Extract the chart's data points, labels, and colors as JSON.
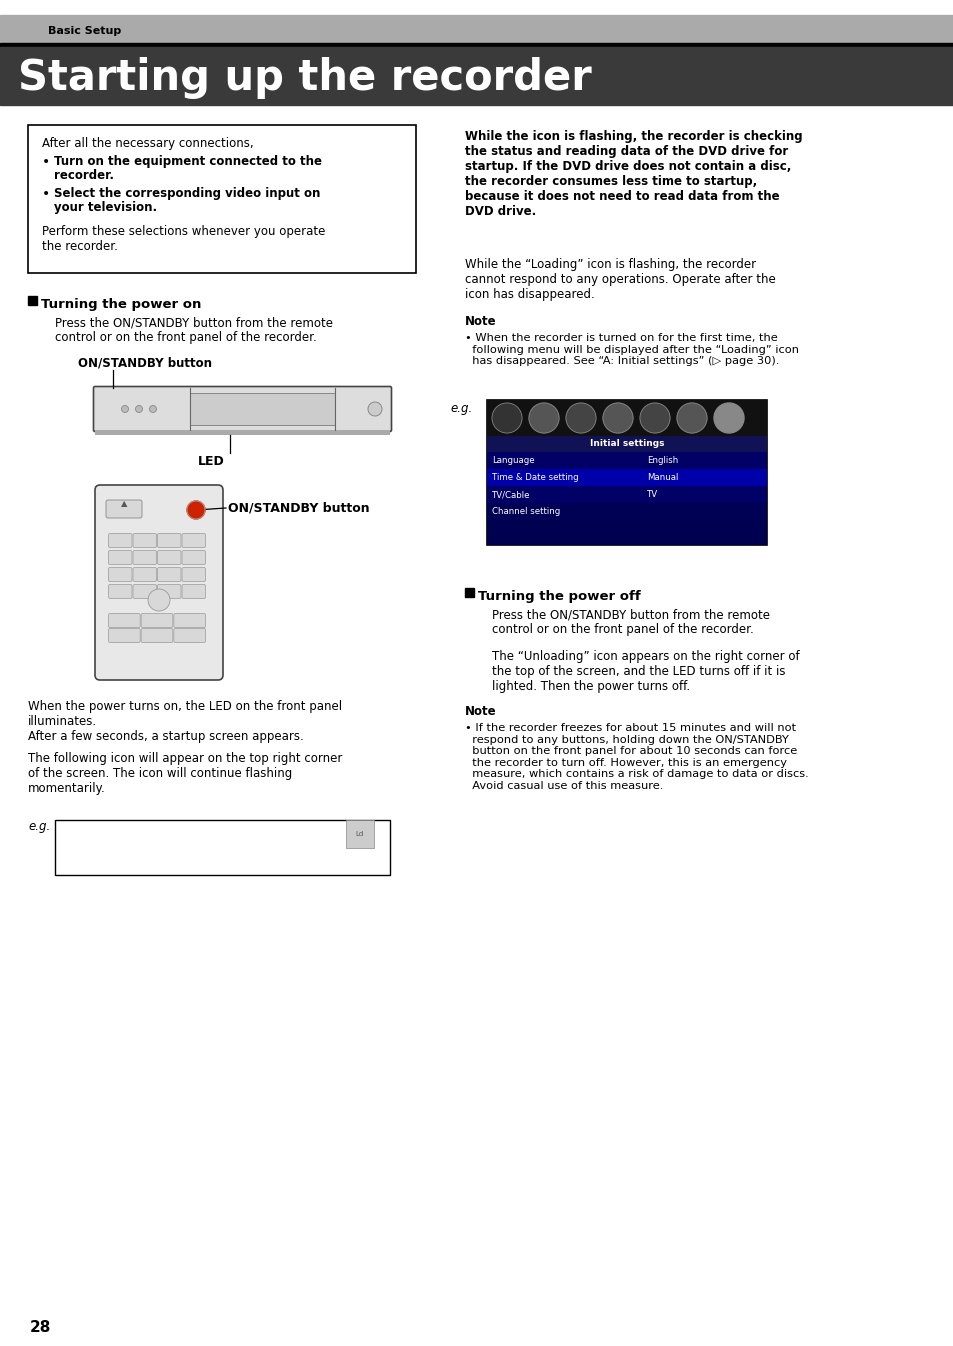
{
  "page_bg": "#ffffff",
  "header_bg": "#aaaaaa",
  "title_bg": "#3a3a3a",
  "header_text": "Basic Setup",
  "title_text": "Starting up the recorder",
  "page_number": "28",
  "box_text_intro": "After all the necessary connections,",
  "box_bullet1_bold": "Turn on the equipment connected to the\nrecorder.",
  "box_bullet2_bold": "Select the corresponding video input on\nyour television.",
  "box_footer": "Perform these selections whenever you operate\nthe recorder.",
  "section_turning_on": "Turning the power on",
  "section_turning_on_desc": "Press the ON/STANDBY button from the remote\ncontrol or on the front panel of the recorder.",
  "label_on_standby": "ON/STANDBY button",
  "label_led": "LED",
  "label_on_standby2": "ON/STANDBY button",
  "para_power_on1": "When the power turns on, the LED on the front panel\nilluminates.\nAfter a few seconds, a startup screen appears.",
  "para_power_on2": "The following icon will appear on the top right corner\nof the screen. The icon will continue flashing\nmomentarily.",
  "right_bold_text": "While the icon is flashing, the recorder is checking\nthe status and reading data of the DVD drive for\nstartup. If the DVD drive does not contain a disc,\nthe recorder consumes less time to startup,\nbecause it does not need to read data from the\nDVD drive.",
  "right_normal_text": "While the “Loading” icon is flashing, the recorder\ncannot respond to any operations. Operate after the\nicon has disappeared.",
  "note_label": "Note",
  "note_text": "• When the recorder is turned on for the first time, the\n  following menu will be displayed after the “Loading” icon\n  has disappeared. See “A: Initial settings” (▷ page 30).",
  "section_turning_off": "Turning the power off",
  "section_turning_off_desc": "Press the ON/STANDBY button from the remote\ncontrol or on the front panel of the recorder.",
  "para_power_off": "The “Unloading” icon appears on the right corner of\nthe top of the screen, and the LED turns off if it is\nlighted. Then the power turns off.",
  "note_label2": "Note",
  "note_text2": "• If the recorder freezes for about 15 minutes and will not\n  respond to any buttons, holding down the ON/STANDBY\n  button on the front panel for about 10 seconds can force\n  the recorder to turn off. However, this is an emergency\n  measure, which contains a risk of damage to data or discs.\n  Avoid casual use of this measure.",
  "eg_label": "e.g.",
  "init_table_header": "Initial settings",
  "init_table_rows": [
    [
      "Language",
      "English",
      false
    ],
    [
      "Time & Date setting",
      "Manual",
      true
    ],
    [
      "TV/Cable",
      "TV",
      false
    ],
    [
      "Channel setting",
      "",
      false
    ]
  ]
}
